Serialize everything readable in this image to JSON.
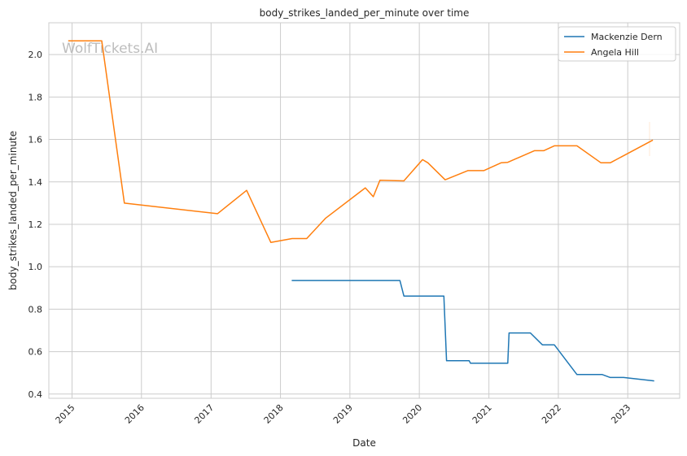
{
  "chart_data": {
    "type": "line",
    "title": "body_strikes_landed_per_minute over time",
    "xlabel": "Date",
    "ylabel": "body_strikes_landed_per_minute",
    "watermark": "WolfTickets.AI",
    "xlim": [
      "2014-09-01",
      "2023-10-01"
    ],
    "ylim": [
      0.38,
      2.15
    ],
    "x_ticks": [
      "2015",
      "2016",
      "2017",
      "2018",
      "2019",
      "2020",
      "2021",
      "2022",
      "2023"
    ],
    "y_ticks": [
      "0.4",
      "0.6",
      "0.8",
      "1.0",
      "1.2",
      "1.4",
      "1.6",
      "1.8",
      "2.0"
    ],
    "grid": true,
    "legend_position": "top-right",
    "series": [
      {
        "name": "Mackenzie Dern",
        "color": "#1f77b4",
        "points": [
          [
            "2018-03-01",
            0.935
          ],
          [
            "2019-09-21",
            0.935
          ],
          [
            "2019-10-12",
            0.862
          ],
          [
            "2020-05-09",
            0.862
          ],
          [
            "2020-05-23",
            0.557
          ],
          [
            "2020-09-19",
            0.557
          ],
          [
            "2020-09-26",
            0.545
          ],
          [
            "2021-04-10",
            0.545
          ],
          [
            "2021-04-17",
            0.688
          ],
          [
            "2021-08-07",
            0.688
          ],
          [
            "2021-10-09",
            0.632
          ],
          [
            "2021-12-11",
            0.632
          ],
          [
            "2022-04-09",
            0.492
          ],
          [
            "2022-08-20",
            0.492
          ],
          [
            "2022-10-01",
            0.478
          ],
          [
            "2022-12-10",
            0.478
          ],
          [
            "2023-05-20",
            0.462
          ]
        ]
      },
      {
        "name": "Angela Hill",
        "color": "#ff7f0e",
        "points": [
          [
            "2014-12-12",
            2.065
          ],
          [
            "2015-06-06",
            2.065
          ],
          [
            "2015-10-03",
            1.3
          ],
          [
            "2017-02-04",
            1.25
          ],
          [
            "2017-07-07",
            1.36
          ],
          [
            "2017-11-11",
            1.115
          ],
          [
            "2018-03-03",
            1.133
          ],
          [
            "2018-05-19",
            1.133
          ],
          [
            "2018-08-25",
            1.228
          ],
          [
            "2019-03-23",
            1.372
          ],
          [
            "2019-05-04",
            1.33
          ],
          [
            "2019-06-08",
            1.408
          ],
          [
            "2019-10-12",
            1.405
          ],
          [
            "2020-01-18",
            1.505
          ],
          [
            "2020-02-15",
            1.49
          ],
          [
            "2020-05-16",
            1.41
          ],
          [
            "2020-09-12",
            1.453
          ],
          [
            "2020-12-05",
            1.453
          ],
          [
            "2021-03-06",
            1.49
          ],
          [
            "2021-04-10",
            1.492
          ],
          [
            "2021-08-28",
            1.547
          ],
          [
            "2021-10-16",
            1.547
          ],
          [
            "2021-12-11",
            1.57
          ],
          [
            "2022-04-09",
            1.57
          ],
          [
            "2022-08-13",
            1.49
          ],
          [
            "2022-10-01",
            1.49
          ],
          [
            "2023-05-13",
            1.597
          ]
        ]
      }
    ]
  }
}
